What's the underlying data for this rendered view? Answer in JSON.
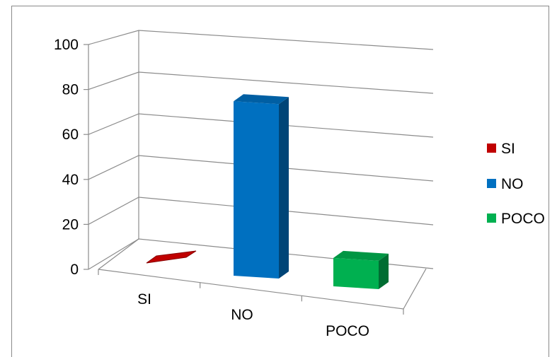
{
  "chart_data": {
    "type": "bar",
    "style": "3d-column",
    "categories": [
      "SI",
      "NO",
      "POCO"
    ],
    "values": [
      0,
      80,
      13
    ],
    "colors": [
      "#c00000",
      "#0070c0",
      "#00b050"
    ],
    "ylim": [
      0,
      100
    ],
    "yticks": [
      "0",
      "20",
      "40",
      "60",
      "80",
      "100"
    ],
    "title": "",
    "xlabel": "",
    "ylabel": "",
    "grid": true,
    "legend_position": "right",
    "legend": [
      {
        "label": "SI",
        "color": "#c00000"
      },
      {
        "label": "NO",
        "color": "#0070c0"
      },
      {
        "label": "POCO",
        "color": "#00b050"
      }
    ]
  }
}
